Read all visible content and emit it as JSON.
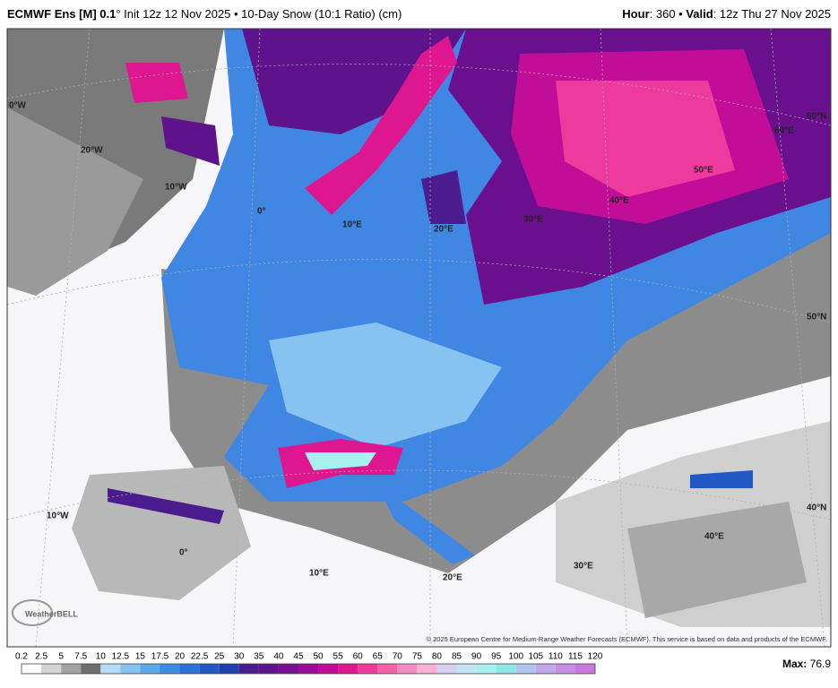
{
  "header": {
    "model": "ECMWF Ens [M] 0.1",
    "details": "° Init 12z 12 Nov 2025 • 10-Day Snow (10:1 Ratio) (cm)",
    "hour_label": "Hour",
    "hour_value": ": 360 • ",
    "valid_label": "Valid",
    "valid_value": ": 12z Thu 27 Nov 2025"
  },
  "map_labels": [
    "0°W",
    "20°W",
    "10°W",
    "0°",
    "10°E",
    "20°E",
    "30°E",
    "40°E",
    "50°E",
    "60°E",
    "60°N",
    "50°N",
    "40°N",
    "10°W",
    "0°",
    "10°E",
    "20°E",
    "30°E",
    "40°E"
  ],
  "logo": "WeatherBELL",
  "copyright": "© 2025 European Centre for Medium-Range Weather Forecasts (ECMWF). This service is based on data and products of the ECMWF.",
  "colorbar": {
    "ticks": [
      0.2,
      2.5,
      5,
      7.5,
      10,
      12.5,
      15,
      17.5,
      20,
      22.5,
      25,
      30,
      35,
      40,
      45,
      50,
      55,
      60,
      65,
      70,
      75,
      80,
      85,
      90,
      95,
      100,
      105,
      110,
      115,
      120
    ],
    "colors": [
      "#ffffff",
      "#d4d4d4",
      "#a3a3a3",
      "#6e6e6e",
      "#b3dcf7",
      "#86c3f0",
      "#5ea8ea",
      "#3d8ce3",
      "#2c70d8",
      "#2258c6",
      "#1c40ad",
      "#4a1c8e",
      "#5e138d",
      "#7a0e90",
      "#990c97",
      "#bf0d98",
      "#de1690",
      "#ee3a9d",
      "#f563ad",
      "#f98ac1",
      "#fbb0d6",
      "#d7d0f2",
      "#c2e4f7",
      "#a6f0f0",
      "#8ee6e6",
      "#b4c4ef",
      "#c0a8ec",
      "#c88ee6",
      "#cc77e0"
    ]
  },
  "max_label": "Max:",
  "max_value": 76.9
}
